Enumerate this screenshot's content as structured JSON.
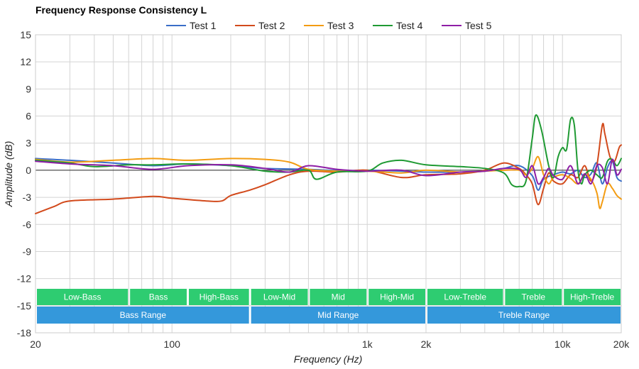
{
  "chart_data": {
    "type": "line",
    "title": "Frequency Response Consistency L",
    "xlabel": "Frequency (Hz)",
    "ylabel": "Amplitude (dB)",
    "xscale": "log",
    "xlim": [
      20,
      20000
    ],
    "ylim": [
      -18,
      15
    ],
    "xticks": [
      {
        "value": 20,
        "label": "20"
      },
      {
        "value": 100,
        "label": "100"
      },
      {
        "value": 1000,
        "label": "1k"
      },
      {
        "value": 2000,
        "label": "2k"
      },
      {
        "value": 10000,
        "label": "10k"
      },
      {
        "value": 20000,
        "label": "20k"
      }
    ],
    "yticks": [
      15,
      12,
      9,
      6,
      3,
      0,
      -3,
      -6,
      -9,
      -12,
      -15,
      -18
    ],
    "grid": true,
    "legend": "top",
    "series": [
      {
        "name": "Test 1",
        "color": "#3a6ec8",
        "points": [
          [
            20,
            1.3
          ],
          [
            30,
            1.1
          ],
          [
            50,
            0.8
          ],
          [
            80,
            0.5
          ],
          [
            120,
            0.7
          ],
          [
            200,
            0.5
          ],
          [
            300,
            0.2
          ],
          [
            500,
            0.1
          ],
          [
            800,
            -0.1
          ],
          [
            1000,
            0
          ],
          [
            1500,
            -0.1
          ],
          [
            2000,
            -0.2
          ],
          [
            3000,
            -0.2
          ],
          [
            4000,
            -0.1
          ],
          [
            5000,
            0.2
          ],
          [
            6000,
            0.5
          ],
          [
            7000,
            -0.6
          ],
          [
            7500,
            -2.2
          ],
          [
            8000,
            -1.0
          ],
          [
            9000,
            -0.5
          ],
          [
            10000,
            -0.2
          ],
          [
            11000,
            -0.4
          ],
          [
            12000,
            0
          ],
          [
            13000,
            -0.8
          ],
          [
            14000,
            -0.4
          ],
          [
            15000,
            0.8
          ],
          [
            16000,
            -1.5
          ],
          [
            17000,
            0.3
          ],
          [
            18000,
            1.0
          ],
          [
            19000,
            -0.8
          ],
          [
            20000,
            -1.2
          ]
        ]
      },
      {
        "name": "Test 2",
        "color": "#d24a1c",
        "points": [
          [
            20,
            -4.8
          ],
          [
            25,
            -4.0
          ],
          [
            30,
            -3.4
          ],
          [
            50,
            -3.2
          ],
          [
            80,
            -2.9
          ],
          [
            100,
            -3.1
          ],
          [
            150,
            -3.4
          ],
          [
            180,
            -3.4
          ],
          [
            200,
            -2.8
          ],
          [
            250,
            -2.2
          ],
          [
            300,
            -1.6
          ],
          [
            400,
            -0.5
          ],
          [
            500,
            -0.1
          ],
          [
            700,
            -0.2
          ],
          [
            1000,
            0
          ],
          [
            1500,
            -0.8
          ],
          [
            2000,
            -0.5
          ],
          [
            3000,
            -0.4
          ],
          [
            4000,
            0
          ],
          [
            5000,
            0.8
          ],
          [
            6000,
            0.2
          ],
          [
            6500,
            -0.5
          ],
          [
            7000,
            -1.5
          ],
          [
            7500,
            -3.8
          ],
          [
            8000,
            -2.0
          ],
          [
            8500,
            -0.3
          ],
          [
            9000,
            -1.2
          ],
          [
            10000,
            -1.5
          ],
          [
            11000,
            -0.5
          ],
          [
            12000,
            -0.8
          ],
          [
            13000,
            0.5
          ],
          [
            14000,
            -1.2
          ],
          [
            15000,
            0.5
          ],
          [
            16000,
            5.0
          ],
          [
            16500,
            4.0
          ],
          [
            17500,
            1.5
          ],
          [
            18500,
            1.0
          ],
          [
            19500,
            2.5
          ],
          [
            20000,
            2.8
          ]
        ]
      },
      {
        "name": "Test 3",
        "color": "#f39c12",
        "points": [
          [
            20,
            1.2
          ],
          [
            30,
            0.9
          ],
          [
            50,
            1.1
          ],
          [
            80,
            1.3
          ],
          [
            120,
            1.1
          ],
          [
            200,
            1.3
          ],
          [
            300,
            1.2
          ],
          [
            400,
            0.9
          ],
          [
            500,
            0.1
          ],
          [
            700,
            -0.1
          ],
          [
            1000,
            -0.1
          ],
          [
            1500,
            -0.3
          ],
          [
            2000,
            0
          ],
          [
            3000,
            -0.2
          ],
          [
            4000,
            -0.1
          ],
          [
            5000,
            0
          ],
          [
            6000,
            0
          ],
          [
            6500,
            -0.5
          ],
          [
            7000,
            0.2
          ],
          [
            7500,
            1.5
          ],
          [
            8000,
            -0.5
          ],
          [
            8500,
            -1.5
          ],
          [
            9000,
            -0.8
          ],
          [
            10000,
            -0.5
          ],
          [
            11000,
            -0.9
          ],
          [
            12000,
            -1.5
          ],
          [
            13000,
            -0.5
          ],
          [
            14000,
            -1.0
          ],
          [
            15000,
            -2.5
          ],
          [
            15500,
            -4.2
          ],
          [
            16000,
            -3.5
          ],
          [
            17000,
            -1.5
          ],
          [
            18000,
            -2.0
          ],
          [
            19000,
            -2.8
          ],
          [
            20000,
            -3.2
          ]
        ]
      },
      {
        "name": "Test 4",
        "color": "#1f9a33",
        "points": [
          [
            20,
            1.1
          ],
          [
            30,
            0.8
          ],
          [
            40,
            0.4
          ],
          [
            60,
            0.6
          ],
          [
            80,
            0.6
          ],
          [
            120,
            0.7
          ],
          [
            200,
            0.5
          ],
          [
            300,
            -0.1
          ],
          [
            400,
            -0.2
          ],
          [
            500,
            0
          ],
          [
            550,
            -1.0
          ],
          [
            700,
            -0.2
          ],
          [
            1000,
            -0.1
          ],
          [
            1200,
            0.8
          ],
          [
            1500,
            1.1
          ],
          [
            2000,
            0.6
          ],
          [
            3000,
            0.4
          ],
          [
            4000,
            0.2
          ],
          [
            5000,
            -0.3
          ],
          [
            5500,
            -1.6
          ],
          [
            6000,
            -1.8
          ],
          [
            6500,
            -1.2
          ],
          [
            7000,
            3.5
          ],
          [
            7300,
            6.1
          ],
          [
            7800,
            4.5
          ],
          [
            8500,
            0.5
          ],
          [
            9000,
            -0.8
          ],
          [
            9500,
            1.5
          ],
          [
            10000,
            2.5
          ],
          [
            10500,
            2.3
          ],
          [
            11000,
            5.6
          ],
          [
            11500,
            5.0
          ],
          [
            12000,
            0
          ],
          [
            12500,
            -1.5
          ],
          [
            13000,
            -0.5
          ],
          [
            14000,
            0
          ],
          [
            15000,
            -0.5
          ],
          [
            16000,
            -0.8
          ],
          [
            17000,
            1.0
          ],
          [
            18000,
            1.2
          ],
          [
            19000,
            0.5
          ],
          [
            20000,
            1.3
          ]
        ]
      },
      {
        "name": "Test 5",
        "color": "#8e1ea6",
        "points": [
          [
            20,
            1.0
          ],
          [
            30,
            0.7
          ],
          [
            50,
            0.5
          ],
          [
            80,
            0.1
          ],
          [
            120,
            0.5
          ],
          [
            200,
            0.6
          ],
          [
            300,
            0.2
          ],
          [
            400,
            -0.2
          ],
          [
            500,
            0.5
          ],
          [
            700,
            0.1
          ],
          [
            1000,
            -0.1
          ],
          [
            1500,
            0
          ],
          [
            2000,
            -0.6
          ],
          [
            3000,
            -0.2
          ],
          [
            4000,
            -0.1
          ],
          [
            5000,
            0.2
          ],
          [
            6000,
            0.1
          ],
          [
            6500,
            -0.8
          ],
          [
            7000,
            0.5
          ],
          [
            7500,
            -1.5
          ],
          [
            8000,
            -0.8
          ],
          [
            8500,
            0.2
          ],
          [
            9000,
            -0.6
          ],
          [
            10000,
            -1.0
          ],
          [
            11000,
            0.5
          ],
          [
            12000,
            -1.5
          ],
          [
            13000,
            -0.4
          ],
          [
            14000,
            -1.5
          ],
          [
            15000,
            0.5
          ],
          [
            16000,
            0.3
          ],
          [
            17000,
            -1.5
          ],
          [
            18000,
            1.2
          ],
          [
            19000,
            -0.5
          ],
          [
            20000,
            0.1
          ]
        ]
      }
    ],
    "range_bands": {
      "row1": [
        {
          "label": "Low-Bass",
          "from": 20,
          "to": 60
        },
        {
          "label": "Bass",
          "from": 60,
          "to": 120
        },
        {
          "label": "High-Bass",
          "from": 120,
          "to": 250
        },
        {
          "label": "Low-Mid",
          "from": 250,
          "to": 500
        },
        {
          "label": "Mid",
          "from": 500,
          "to": 1000
        },
        {
          "label": "High-Mid",
          "from": 1000,
          "to": 2000
        },
        {
          "label": "Low-Treble",
          "from": 2000,
          "to": 5000
        },
        {
          "label": "Treble",
          "from": 5000,
          "to": 10000
        },
        {
          "label": "High-Treble",
          "from": 10000,
          "to": 20000
        }
      ],
      "row2": [
        {
          "label": "Bass Range",
          "from": 20,
          "to": 250
        },
        {
          "label": "Mid Range",
          "from": 250,
          "to": 2000
        },
        {
          "label": "Treble Range",
          "from": 2000,
          "to": 20000
        }
      ],
      "row1_color": "#2ecc71",
      "row2_color": "#3498db"
    }
  }
}
